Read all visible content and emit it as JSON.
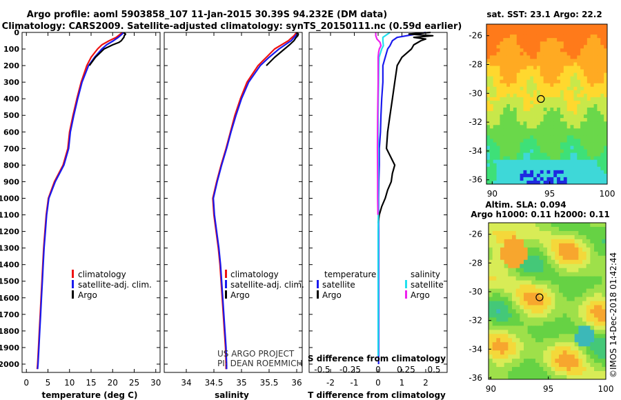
{
  "title_line1": "Argo profile: aoml 5903858_107 11-Jan-2015 30.39S 94.232E (DM data)",
  "title_line2": "Climatology: CARS2009. Satellite-adjusted climatology: synTS_20150111.nc (0.59d earlier)",
  "colors": {
    "climatology": "#ee1111",
    "satellite": "#1a1aee",
    "argo": "#000000",
    "sat_salinity": "#22e0ee",
    "clim_salinity": "#ee22ee"
  },
  "depth_axis": {
    "min": 0,
    "max": 2050,
    "ticks": [
      0,
      100,
      200,
      300,
      400,
      500,
      600,
      700,
      800,
      900,
      1000,
      1100,
      1200,
      1300,
      1400,
      1500,
      1600,
      1700,
      1800,
      1900,
      2000
    ]
  },
  "chart_data": [
    {
      "type": "line",
      "name": "temperature",
      "xlabel": "temperature (deg C)",
      "xlim": [
        -1,
        31
      ],
      "xticks": [
        0,
        5,
        10,
        15,
        20,
        25,
        30
      ],
      "legend": [
        "climatology",
        "satellite-adj. clim.",
        "Argo"
      ],
      "series": [
        {
          "name": "climatology",
          "color_key": "climatology",
          "depth": [
            0,
            10,
            30,
            50,
            75,
            100,
            150,
            200,
            300,
            400,
            500,
            600,
            700,
            800,
            900,
            1000,
            1100,
            1200,
            1300,
            1400,
            1500,
            1600,
            1700,
            1800,
            1900,
            2000,
            2030
          ],
          "values": [
            22.2,
            21.8,
            20.8,
            19.2,
            17.5,
            16.5,
            15.0,
            14.0,
            12.7,
            11.7,
            10.8,
            10.0,
            9.6,
            8.5,
            6.5,
            5.1,
            4.6,
            4.3,
            4.0,
            3.8,
            3.6,
            3.4,
            3.2,
            3.0,
            2.8,
            2.6,
            2.5
          ]
        },
        {
          "name": "satellite-adj. clim.",
          "color_key": "satellite",
          "depth": [
            0,
            10,
            30,
            50,
            75,
            100,
            150,
            200,
            300,
            400,
            500,
            600,
            700,
            800,
            900,
            1000,
            1100,
            1200,
            1300,
            1400,
            1500,
            1600,
            1700,
            1800,
            1900,
            2000,
            2030
          ],
          "values": [
            22.5,
            22.2,
            21.3,
            20.2,
            18.6,
            17.5,
            15.8,
            14.4,
            12.9,
            11.9,
            11.0,
            10.2,
            9.8,
            8.7,
            6.7,
            5.2,
            4.7,
            4.4,
            4.1,
            3.9,
            3.7,
            3.5,
            3.3,
            3.1,
            2.9,
            2.7,
            2.6
          ]
        },
        {
          "name": "Argo",
          "color_key": "argo",
          "depth": [
            0,
            5,
            10,
            20,
            30,
            40,
            50,
            60,
            75,
            100,
            150,
            200
          ],
          "values": [
            22.8,
            22.7,
            23.0,
            22.7,
            22.6,
            22.3,
            22.0,
            21.5,
            20.0,
            18.0,
            16.0,
            14.6
          ]
        }
      ]
    },
    {
      "type": "line",
      "name": "salinity",
      "xlabel": "salinity",
      "xlim": [
        33.6,
        36.1
      ],
      "xticks": [
        34,
        34.5,
        35,
        35.5,
        36
      ],
      "xtick_labels": [
        "34",
        "34.5",
        "35",
        "35.5",
        "36"
      ],
      "legend": [
        "climatology",
        "satellite-adj. clim.",
        "Argo"
      ],
      "annotation": [
        "US ARGO PROJECT",
        "PI: DEAN ROEMMICH"
      ],
      "series": [
        {
          "name": "climatology",
          "color_key": "climatology",
          "depth": [
            0,
            20,
            50,
            100,
            150,
            200,
            300,
            400,
            500,
            600,
            700,
            800,
            900,
            1000,
            1100,
            1200,
            1300,
            1400,
            1500,
            1600,
            1700,
            1800,
            1900,
            2000,
            2030
          ],
          "values": [
            36.0,
            35.95,
            35.85,
            35.6,
            35.45,
            35.3,
            35.1,
            34.98,
            34.88,
            34.8,
            34.72,
            34.63,
            34.55,
            34.48,
            34.5,
            34.54,
            34.58,
            34.61,
            34.63,
            34.65,
            34.67,
            34.69,
            34.71,
            34.72,
            34.72
          ]
        },
        {
          "name": "satellite-adj. clim.",
          "color_key": "satellite",
          "depth": [
            0,
            20,
            50,
            100,
            150,
            200,
            300,
            400,
            500,
            600,
            700,
            800,
            900,
            1000,
            1100,
            1200,
            1300,
            1400,
            1500,
            1600,
            1700,
            1800,
            1900,
            2000,
            2030
          ],
          "values": [
            36.02,
            35.98,
            35.9,
            35.68,
            35.5,
            35.34,
            35.13,
            35.0,
            34.9,
            34.81,
            34.73,
            34.64,
            34.56,
            34.49,
            34.51,
            34.55,
            34.59,
            34.62,
            34.64,
            34.66,
            34.68,
            34.7,
            34.72,
            34.73,
            34.73
          ]
        },
        {
          "name": "Argo",
          "color_key": "argo",
          "depth": [
            0,
            10,
            20,
            30,
            50,
            75,
            100,
            150,
            200
          ],
          "values": [
            36.0,
            36.03,
            36.02,
            35.99,
            35.95,
            35.87,
            35.78,
            35.6,
            35.45
          ]
        }
      ]
    },
    {
      "type": "line",
      "name": "difference",
      "xlabel": "T difference from climatology",
      "xlabel_top": "S difference from climatology",
      "xlim": [
        -2.9,
        2.9
      ],
      "xticks": [
        -2,
        -1,
        0,
        1,
        2
      ],
      "top_ticks": [
        -0.5,
        -0.25,
        0,
        0.25,
        0.5
      ],
      "top_tick_labels": [
        "-0.5",
        "-0.25",
        "0",
        "0.25",
        "0.5"
      ],
      "legend_temperature_title": "temperature",
      "legend_salinity_title": "salinity",
      "legend_temperature": [
        "satellite",
        "Argo"
      ],
      "legend_salinity": [
        "satellite",
        "Argo"
      ],
      "series": [
        {
          "name": "T satellite",
          "color_key": "satellite",
          "depth": [
            0,
            30,
            50,
            80,
            100,
            150,
            200,
            300,
            400,
            500,
            600,
            700,
            800,
            900,
            1000,
            1100,
            1200,
            1500,
            2000
          ],
          "values": [
            2.0,
            0.8,
            0.6,
            0.5,
            0.4,
            0.3,
            0.2,
            0.2,
            0.15,
            0.12,
            0.1,
            0.05,
            0.05,
            0.03,
            0.02,
            0.02,
            0.02,
            0.02,
            0.02
          ]
        },
        {
          "name": "T Argo",
          "color_key": "argo",
          "depth": [
            0,
            10,
            20,
            30,
            40,
            50,
            75,
            100,
            150,
            200,
            300,
            400,
            500,
            600,
            700,
            800,
            850,
            900,
            950,
            1000,
            1050,
            1100,
            1150
          ],
          "values": [
            2.2,
            1.3,
            2.3,
            1.5,
            2.0,
            1.8,
            1.5,
            1.4,
            1.0,
            0.8,
            0.7,
            0.6,
            0.5,
            0.4,
            0.35,
            0.7,
            0.6,
            0.55,
            0.4,
            0.3,
            0.15,
            0.05,
            0.0
          ]
        },
        {
          "name": "S satellite",
          "color_key": "sat_salinity",
          "depth": [
            0,
            30,
            50,
            80,
            100,
            150,
            200,
            300,
            400,
            500,
            600,
            700,
            800,
            900,
            1000,
            1100,
            1200,
            1500,
            1800,
            1900,
            1950
          ],
          "values": [
            0.5,
            0.2,
            0.2,
            0.22,
            0.15,
            0.04,
            0.03,
            0.02,
            0.01,
            0.0,
            0.0,
            0.01,
            0.01,
            0.01,
            0.01,
            0.01,
            0.0,
            0.0,
            0.0,
            0.0,
            0.0
          ]
        },
        {
          "name": "S Argo",
          "color_key": "clim_salinity",
          "depth": [
            0,
            20,
            40,
            60,
            80,
            100,
            120,
            150,
            200,
            300,
            500,
            700,
            900,
            1000,
            1100
          ],
          "values": [
            -0.1,
            -0.1,
            -0.05,
            0.08,
            0.12,
            0.05,
            0.02,
            0.0,
            0.0,
            0.0,
            -0.02,
            -0.03,
            -0.02,
            -0.02,
            -0.01
          ]
        }
      ]
    },
    {
      "type": "heatmap",
      "name": "sst-map",
      "title": "sat. SST: 23.1 Argo: 22.2",
      "xlim": [
        89.5,
        100
      ],
      "ylim": [
        -36.3,
        -25.2
      ],
      "xticks": [
        90,
        95,
        100
      ],
      "yticks": [
        -26,
        -28,
        -30,
        -32,
        -34,
        -36
      ],
      "marker": {
        "lon": 94.232,
        "lat": -30.39
      }
    },
    {
      "type": "heatmap",
      "name": "sla-map",
      "title_line1": "Altim. SLA: 0.094",
      "title_line2": "Argo h1000: 0.11 h2000: 0.11",
      "xlim": [
        89.8,
        100
      ],
      "ylim": [
        -36.1,
        -25.2
      ],
      "xticks": [
        90,
        95,
        100
      ],
      "yticks": [
        -26,
        -28,
        -30,
        -32,
        -34,
        -36
      ],
      "marker": {
        "lon": 94.232,
        "lat": -30.39
      }
    }
  ],
  "footer_credit": "©IMOS 14-Dec-2018 01:42:44"
}
